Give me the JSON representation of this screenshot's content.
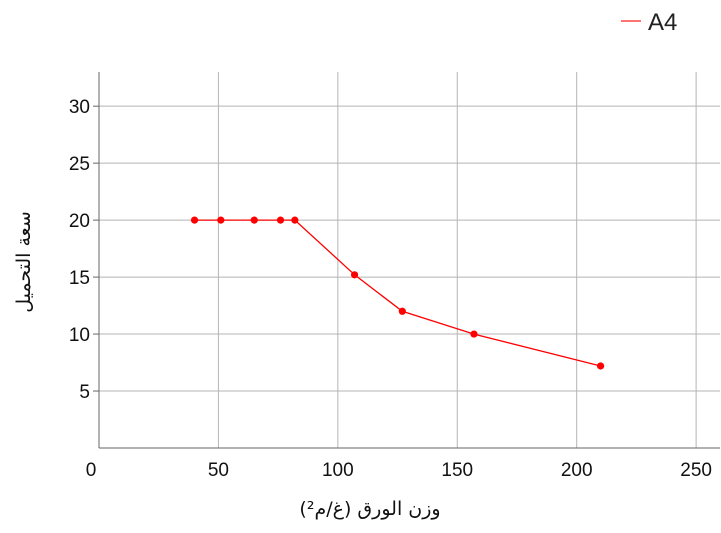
{
  "chart_data": {
    "type": "line",
    "xlabel": "وزن الورق (غ/م²)",
    "ylabel": "سعة التحميل",
    "xlim": [
      0,
      260
    ],
    "ylim": [
      0,
      33
    ],
    "x_ticks": [
      0,
      50,
      100,
      150,
      200,
      250
    ],
    "y_ticks": [
      5,
      10,
      15,
      20,
      25,
      30
    ],
    "grid": true,
    "legend_position": "top-right",
    "series": [
      {
        "name": "A4",
        "color": "#ff0000",
        "x": [
          40,
          51,
          65,
          76,
          82,
          107,
          127,
          157,
          210
        ],
        "y": [
          20,
          20,
          20,
          20,
          20,
          15.2,
          12,
          10,
          7.2
        ]
      }
    ]
  }
}
